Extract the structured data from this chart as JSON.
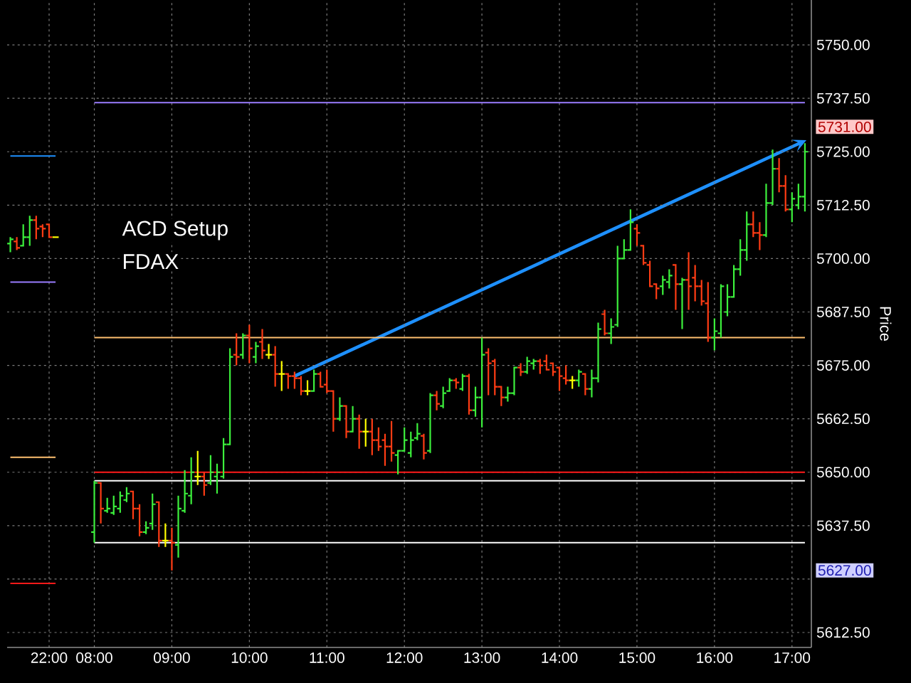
{
  "chart_data": {
    "type": "candlestick",
    "title": "ACD Setup",
    "subtitle": "FDAX",
    "ylabel": "Price",
    "categories": [
      null,
      null,
      null,
      null,
      null,
      null,
      "22:00",
      null,
      null,
      null,
      null,
      null,
      null,
      "08:00",
      null,
      null,
      null,
      null,
      null,
      null,
      null,
      null,
      null,
      null,
      null,
      "09:00",
      null,
      null,
      null,
      null,
      null,
      null,
      null,
      null,
      null,
      null,
      null,
      "10:00",
      null,
      null,
      null,
      null,
      null,
      null,
      null,
      null,
      null,
      null,
      null,
      "11:00",
      null,
      null,
      null,
      null,
      null,
      null,
      null,
      null,
      null,
      null,
      null,
      "12:00",
      null,
      null,
      null,
      null,
      null,
      null,
      null,
      null,
      null,
      null,
      null,
      "13:00",
      null,
      null,
      null,
      null,
      null,
      null,
      null,
      null,
      null,
      null,
      null,
      "14:00",
      null,
      null,
      null,
      null,
      null,
      null,
      null,
      null,
      null,
      null,
      null,
      "15:00",
      null,
      null,
      null,
      null,
      null,
      null,
      null,
      null,
      null,
      null,
      null,
      "16:00",
      null,
      null,
      null,
      null,
      null,
      null,
      null,
      null,
      null,
      null,
      null,
      "17:00",
      null,
      null
    ],
    "ohlc": [
      [
        5703.5,
        5705,
        5701.5,
        5704.5
      ],
      [
        5704,
        5705,
        5702,
        5702.5
      ],
      [
        5703,
        5708,
        5703,
        5705
      ],
      [
        5705,
        5710,
        5703,
        5709
      ],
      [
        5709,
        5710,
        5704.5,
        5707
      ],
      [
        5707.5,
        5708,
        5705,
        5707
      ],
      [
        5708,
        5708,
        5705,
        5705
      ],
      [
        5705,
        5705,
        5705,
        5705
      ],
      null,
      null,
      null,
      null,
      null,
      [
        5636,
        5648,
        5633.5,
        5647.5
      ],
      [
        5647.5,
        5647.5,
        5638,
        5641.5
      ],
      [
        5641,
        5644,
        5640.5,
        5641.5
      ],
      [
        5640.5,
        5644.5,
        5640,
        5642
      ],
      [
        5641.5,
        5645.5,
        5640.5,
        5644.5
      ],
      [
        5643.5,
        5646.5,
        5643,
        5645
      ],
      [
        5645.5,
        5645.5,
        5639,
        5641.5
      ],
      [
        5641.5,
        5642.5,
        5635,
        5636
      ],
      [
        5636,
        5638.5,
        5635.5,
        5637
      ],
      [
        5638,
        5645,
        5636.5,
        5642.5
      ],
      [
        5643,
        5643,
        5632.5,
        5634
      ],
      [
        5634,
        5638,
        5632.5,
        5634
      ],
      [
        5634,
        5637,
        5627,
        5633.5
      ],
      [
        5633,
        5644.5,
        5630,
        5641.5
      ],
      [
        5641,
        5650.5,
        5640.5,
        5645
      ],
      [
        5644.5,
        5653.5,
        5642.5,
        5650
      ],
      [
        5649,
        5655,
        5647,
        5649
      ],
      [
        5649,
        5650,
        5644.5,
        5647
      ],
      [
        5647.5,
        5654,
        5647,
        5650
      ],
      [
        5649,
        5652,
        5645,
        5650
      ],
      [
        5649,
        5658,
        5648.5,
        5656.5
      ],
      [
        5656.5,
        5679,
        5656.5,
        5677
      ],
      [
        5677.5,
        5682.5,
        5675,
        5677
      ],
      [
        5677.5,
        5682.5,
        5676.5,
        5682
      ],
      [
        5682,
        5684.5,
        5675.5,
        5679
      ],
      [
        5677,
        5680.5,
        5675.5,
        5679.5
      ],
      [
        5680.5,
        5683.5,
        5676.5,
        5678.5
      ],
      [
        5677.5,
        5680,
        5676.5,
        5677.5
      ],
      [
        5677.5,
        5679.5,
        5670,
        5673
      ],
      [
        5673,
        5676,
        5669,
        5673
      ],
      [
        5673,
        5673,
        5669.5,
        5672.5
      ],
      [
        5672.5,
        5673.5,
        5669.5,
        5672
      ],
      [
        5672,
        5672.5,
        5668,
        5669
      ],
      [
        5669,
        5671.5,
        5668,
        5669
      ],
      [
        5669,
        5674,
        5669,
        5673
      ],
      [
        5673,
        5673.5,
        5670,
        5670
      ],
      [
        5670.5,
        5674,
        5668.5,
        5669
      ],
      [
        5669,
        5669,
        5659.5,
        5662.5
      ],
      [
        5662.5,
        5667.5,
        5662,
        5665.5
      ],
      [
        5665.5,
        5665.5,
        5658,
        5659.5
      ],
      [
        5659.5,
        5665.5,
        5659.5,
        5662.5
      ],
      [
        5662.5,
        5663.5,
        5655.5,
        5659.5
      ],
      [
        5659.5,
        5662.5,
        5656,
        5659.5
      ],
      [
        5659.5,
        5662.5,
        5654,
        5657.5
      ],
      [
        5657.5,
        5660.5,
        5655,
        5656
      ],
      [
        5657.5,
        5659,
        5651.5,
        5656
      ],
      [
        5656,
        5662,
        5652.5,
        5654.5
      ],
      [
        5654,
        5655,
        5649.5,
        5655
      ],
      [
        5655,
        5660.5,
        5655,
        5657.5
      ],
      [
        5654.5,
        5659.5,
        5653.5,
        5657.5
      ],
      [
        5658,
        5661.5,
        5657.5,
        5659
      ],
      [
        5658.5,
        5659,
        5653,
        5654.5
      ],
      [
        5655,
        5668.5,
        5654.5,
        5668
      ],
      [
        5668,
        5669,
        5664.5,
        5666
      ],
      [
        5665.5,
        5670,
        5665,
        5668.5
      ],
      [
        5669,
        5672,
        5669,
        5671.5
      ],
      [
        5671.5,
        5672,
        5669.5,
        5671
      ],
      [
        5669.5,
        5673,
        5669,
        5672.5
      ],
      [
        5672.5,
        5673,
        5663.5,
        5664.5
      ],
      [
        5664.5,
        5670,
        5663,
        5667.5
      ],
      [
        5667.5,
        5681.5,
        5660.5,
        5677.5
      ],
      [
        5678,
        5679,
        5668,
        5675.5
      ],
      [
        5676,
        5676.5,
        5668,
        5670
      ],
      [
        5670,
        5670,
        5665.5,
        5667.5
      ],
      [
        5667.5,
        5670,
        5666.5,
        5668.5
      ],
      [
        5668.5,
        5674.5,
        5668,
        5674.5
      ],
      [
        5674.5,
        5675.5,
        5672.5,
        5673.5
      ],
      [
        5673.5,
        5677,
        5673,
        5676
      ],
      [
        5675.5,
        5676.5,
        5674,
        5676
      ],
      [
        5676,
        5676.5,
        5673,
        5675
      ],
      [
        5676,
        5677.5,
        5674,
        5674
      ],
      [
        5675.5,
        5675.5,
        5672.5,
        5673.5
      ],
      [
        5674.5,
        5674.5,
        5669,
        5672.5
      ],
      [
        5672,
        5675,
        5670.5,
        5671.5
      ],
      [
        5671.5,
        5672.5,
        5669.5,
        5671.5
      ],
      [
        5671.5,
        5674,
        5670,
        5673.5
      ],
      [
        5673,
        5673,
        5668,
        5669.5
      ],
      [
        5669.5,
        5674,
        5667.5,
        5672
      ],
      [
        5672,
        5685,
        5671,
        5683.5
      ],
      [
        5687,
        5688,
        5682,
        5682.5
      ],
      [
        5682.5,
        5686,
        5680,
        5684
      ],
      [
        5684.5,
        5703,
        5684,
        5700
      ],
      [
        5700,
        5704.5,
        5700,
        5702
      ],
      [
        5702,
        5711.5,
        5702,
        5708.5
      ],
      [
        5707,
        5708,
        5703,
        5706
      ],
      [
        5703,
        5703,
        5698.5,
        5699
      ],
      [
        5698.5,
        5699.5,
        5693.5,
        5693.5
      ],
      [
        5694,
        5694,
        5690.5,
        5693
      ],
      [
        5693.5,
        5696,
        5691.5,
        5695
      ],
      [
        5694.5,
        5697.5,
        5693,
        5696
      ],
      [
        5698.5,
        5698.5,
        5688,
        5694
      ],
      [
        5694,
        5695.5,
        5683.5,
        5695
      ],
      [
        5695,
        5701.5,
        5688,
        5693.5
      ],
      [
        5695.5,
        5698.5,
        5690,
        5693.5
      ],
      [
        5693.5,
        5695,
        5689,
        5690
      ],
      [
        5689.5,
        5694.5,
        5680.5,
        5681.5
      ],
      [
        5681.5,
        5686,
        5678.5,
        5683
      ],
      [
        5682.5,
        5694,
        5681.5,
        5693.5
      ],
      [
        5687.5,
        5694,
        5686.5,
        5691
      ],
      [
        5691,
        5698.5,
        5691,
        5697.5
      ],
      [
        5697.5,
        5704.5,
        5696,
        5702
      ],
      [
        5702,
        5711,
        5699.5,
        5708
      ],
      [
        5708,
        5711,
        5705,
        5706
      ],
      [
        5706,
        5708.5,
        5702,
        5705.5
      ],
      [
        5705.5,
        5717.5,
        5705,
        5713
      ],
      [
        5713,
        5725.5,
        5712.5,
        5721
      ],
      [
        5721,
        5723.5,
        5715.5,
        5717
      ],
      [
        5717,
        5719.5,
        5711,
        5711.5
      ],
      [
        5711.5,
        5715.5,
        5708.5,
        5714
      ],
      [
        5712.5,
        5717.5,
        5711.5,
        5714.5
      ],
      [
        5714.5,
        5727,
        5711,
        5725
      ]
    ],
    "colors": [
      "#3cf03c",
      "#ff3c14",
      "#3cf03c",
      "#3cf03c",
      "#ff3c14",
      "#ff3c14",
      "#ff3c14",
      "#ffff00",
      null,
      null,
      null,
      null,
      null,
      "#3cf03c",
      "#ff3c14",
      "#3cf03c",
      "#3cf03c",
      "#3cf03c",
      "#3cf03c",
      "#ff3c14",
      "#ff3c14",
      "#3cf03c",
      "#3cf03c",
      "#ff3c14",
      "#ffff00",
      "#ff3c14",
      "#3cf03c",
      "#3cf03c",
      "#3cf03c",
      "#ffff00",
      "#ff3c14",
      "#3cf03c",
      "#3cf03c",
      "#3cf03c",
      "#3cf03c",
      "#ff3c14",
      "#3cf03c",
      "#ff3c14",
      "#3cf03c",
      "#ff3c14",
      "#ffff00",
      "#ff3c14",
      "#ffff00",
      "#ff3c14",
      "#ff3c14",
      "#ff3c14",
      "#ffff00",
      "#3cf03c",
      "#ff3c14",
      "#ff3c14",
      "#ff3c14",
      "#3cf03c",
      "#ff3c14",
      "#3cf03c",
      "#ff3c14",
      "#ffff00",
      "#ff3c14",
      "#ff3c14",
      "#ff3c14",
      "#ff3c14",
      "#3cf03c",
      "#3cf03c",
      "#3cf03c",
      "#3cf03c",
      "#ff3c14",
      "#3cf03c",
      "#ff3c14",
      "#3cf03c",
      "#3cf03c",
      "#ff3c14",
      "#3cf03c",
      "#ff3c14",
      "#3cf03c",
      "#3cf03c",
      "#ff3c14",
      "#ff3c14",
      "#ff3c14",
      "#3cf03c",
      "#3cf03c",
      "#ff3c14",
      "#3cf03c",
      "#3cf03c",
      "#ff3c14",
      "#ff3c14",
      "#ff3c14",
      "#ff3c14",
      "#ff3c14",
      "#ffff00",
      "#3cf03c",
      "#ff3c14",
      "#3cf03c",
      "#3cf03c",
      "#ff3c14",
      "#3cf03c",
      "#3cf03c",
      "#3cf03c",
      "#3cf03c",
      "#ff3c14",
      "#ff3c14",
      "#ff3c14",
      "#ff3c14",
      "#3cf03c",
      "#3cf03c",
      "#ff3c14",
      "#3cf03c",
      "#ff3c14",
      "#ff3c14",
      "#ff3c14",
      "#ff3c14",
      "#3cf03c",
      "#3cf03c",
      "#3cf03c",
      "#3cf03c",
      "#3cf03c",
      "#3cf03c",
      "#ff3c14",
      "#ff3c14",
      "#3cf03c",
      "#3cf03c",
      "#ff3c14",
      "#ff3c14",
      "#3cf03c",
      "#3cf03c",
      "#3cf03c"
    ],
    "series": [
      {
        "type": "line",
        "color": "#1e90ff",
        "values": [
          5724,
          5724,
          5724,
          5724,
          5724,
          5724,
          5724,
          5724,
          null,
          null,
          null,
          null,
          null,
          null,
          null,
          null,
          null,
          null,
          null,
          null,
          null,
          null,
          null,
          null,
          null,
          null,
          null,
          null,
          null,
          null,
          null,
          null,
          null,
          null,
          null,
          null,
          null,
          null,
          null,
          null,
          null,
          null,
          null,
          null,
          null,
          null,
          null,
          null,
          null,
          null,
          null,
          null,
          null,
          null,
          null,
          null,
          null,
          null,
          null,
          null,
          null,
          null,
          null,
          null,
          null,
          null,
          null,
          null,
          null,
          null,
          null,
          null,
          null,
          null,
          null,
          null,
          null,
          null,
          null,
          null,
          null,
          null,
          null,
          null,
          null,
          null,
          null,
          null,
          null,
          null,
          null,
          null,
          null,
          null,
          null,
          null,
          null,
          null,
          null,
          null,
          null,
          null,
          null,
          null,
          null,
          null,
          null,
          null,
          null,
          null,
          null,
          null,
          null,
          null,
          null,
          null,
          null,
          null,
          null,
          null,
          null,
          null,
          null,
          null
        ]
      },
      {
        "type": "line",
        "color": "#9a7cff",
        "values": [
          5694.5,
          5694.5,
          5694.5,
          5694.5,
          5694.5,
          5694.5,
          5694.5,
          5694.5,
          null,
          null,
          null,
          null,
          null,
          null,
          null,
          null,
          null,
          null,
          null,
          null,
          null,
          null,
          null,
          null,
          null,
          null,
          null,
          null,
          null,
          null,
          null,
          null,
          null,
          null,
          null,
          null,
          null,
          null,
          null,
          null,
          null,
          null,
          null,
          null,
          null,
          null,
          null,
          null,
          null,
          null,
          null,
          null,
          null,
          null,
          null,
          null,
          null,
          null,
          null,
          null,
          null,
          null,
          null,
          null,
          null,
          null,
          null,
          null,
          null,
          null,
          null,
          null,
          null,
          null,
          null,
          null,
          null,
          null,
          null,
          null,
          null,
          null,
          null,
          null,
          null,
          null,
          null,
          null,
          null,
          null,
          null,
          null,
          null,
          null,
          null,
          null,
          null,
          null,
          null,
          null,
          null,
          null,
          null,
          null,
          null,
          null,
          null,
          null,
          null,
          null,
          null,
          null,
          null,
          null,
          null,
          null,
          null,
          null,
          null,
          null,
          null,
          null,
          null,
          null
        ]
      },
      {
        "type": "line",
        "color": "#ffc070",
        "values": [
          5653.5,
          5653.5,
          5653.5,
          5653.5,
          5653.5,
          5653.5,
          5653.5,
          5653.5,
          null,
          null,
          null,
          null,
          null,
          null,
          null,
          null,
          null,
          null,
          null,
          null,
          null,
          null,
          null,
          null,
          null,
          null,
          null,
          null,
          null,
          null,
          null,
          null,
          null,
          null,
          null,
          null,
          null,
          null,
          null,
          null,
          null,
          null,
          null,
          null,
          null,
          null,
          null,
          null,
          null,
          null,
          null,
          null,
          null,
          null,
          null,
          null,
          null,
          null,
          null,
          null,
          null,
          null,
          null,
          null,
          null,
          null,
          null,
          null,
          null,
          null,
          null,
          null,
          null,
          null,
          null,
          null,
          null,
          null,
          null,
          null,
          null,
          null,
          null,
          null,
          null,
          null,
          null,
          null,
          null,
          null,
          null,
          null,
          null,
          null,
          null,
          null,
          null,
          null,
          null,
          null,
          null,
          null,
          null,
          null,
          null,
          null,
          null,
          null,
          null,
          null,
          null,
          null,
          null,
          null,
          null,
          null,
          null,
          null,
          null,
          null,
          null,
          null,
          null,
          null
        ]
      },
      {
        "type": "line",
        "color": "#ff1a1a",
        "values": [
          5624,
          5624,
          5624,
          5624,
          5624,
          5624,
          5624,
          5624,
          null,
          null,
          null,
          null,
          null,
          null,
          null,
          null,
          null,
          null,
          null,
          null,
          null,
          null,
          null,
          null,
          null,
          null,
          null,
          null,
          null,
          null,
          null,
          null,
          null,
          null,
          null,
          null,
          null,
          null,
          null,
          null,
          null,
          null,
          null,
          null,
          null,
          null,
          null,
          null,
          null,
          null,
          null,
          null,
          null,
          null,
          null,
          null,
          null,
          null,
          null,
          null,
          null,
          null,
          null,
          null,
          null,
          null,
          null,
          null,
          null,
          null,
          null,
          null,
          null,
          null,
          null,
          null,
          null,
          null,
          null,
          null,
          null,
          null,
          null,
          null,
          null,
          null,
          null,
          null,
          null,
          null,
          null,
          null,
          null,
          null,
          null,
          null,
          null,
          null,
          null,
          null,
          null,
          null,
          null,
          null,
          null,
          null,
          null,
          null,
          null,
          null,
          null,
          null,
          null,
          null,
          null,
          null,
          null,
          null,
          null,
          null,
          null,
          null,
          null,
          null
        ]
      },
      {
        "type": "line",
        "color": "#9a7cff",
        "values": [
          null,
          null,
          null,
          null,
          null,
          null,
          null,
          null,
          null,
          null,
          null,
          null,
          null,
          5736.5,
          5736.5,
          5736.5,
          5736.5,
          5736.5,
          5736.5,
          5736.5,
          5736.5,
          5736.5,
          5736.5,
          5736.5,
          5736.5,
          5736.5,
          5736.5,
          5736.5,
          5736.5,
          5736.5,
          5736.5,
          5736.5,
          5736.5,
          5736.5,
          5736.5,
          5736.5,
          5736.5,
          5736.5,
          5736.5,
          5736.5,
          5736.5,
          5736.5,
          5736.5,
          5736.5,
          5736.5,
          5736.5,
          5736.5,
          5736.5,
          5736.5,
          5736.5,
          5736.5,
          5736.5,
          5736.5,
          5736.5,
          5736.5,
          5736.5,
          5736.5,
          5736.5,
          5736.5,
          5736.5,
          5736.5,
          5736.5,
          5736.5,
          5736.5,
          5736.5,
          5736.5,
          5736.5,
          5736.5,
          5736.5,
          5736.5,
          5736.5,
          5736.5,
          5736.5,
          5736.5,
          5736.5,
          5736.5,
          5736.5,
          5736.5,
          5736.5,
          5736.5,
          5736.5,
          5736.5,
          5736.5,
          5736.5,
          5736.5,
          5736.5,
          5736.5,
          5736.5,
          5736.5,
          5736.5,
          5736.5,
          5736.5,
          5736.5,
          5736.5,
          5736.5,
          5736.5,
          5736.5,
          5736.5,
          5736.5,
          5736.5,
          5736.5,
          5736.5,
          5736.5,
          5736.5,
          5736.5,
          5736.5,
          5736.5,
          5736.5,
          5736.5,
          5736.5,
          5736.5,
          5736.5,
          5736.5,
          5736.5,
          5736.5,
          5736.5,
          5736.5,
          5736.5,
          5736.5,
          5736.5,
          5736.5,
          5736.5,
          5736.5,
          5736.5
        ]
      },
      {
        "type": "line",
        "color": "#ffc070",
        "values": [
          null,
          null,
          null,
          null,
          null,
          null,
          null,
          null,
          null,
          null,
          null,
          null,
          null,
          5681.5,
          5681.5,
          5681.5,
          5681.5,
          5681.5,
          5681.5,
          5681.5,
          5681.5,
          5681.5,
          5681.5,
          5681.5,
          5681.5,
          5681.5,
          5681.5,
          5681.5,
          5681.5,
          5681.5,
          5681.5,
          5681.5,
          5681.5,
          5681.5,
          5681.5,
          5681.5,
          5681.5,
          5681.5,
          5681.5,
          5681.5,
          5681.5,
          5681.5,
          5681.5,
          5681.5,
          5681.5,
          5681.5,
          5681.5,
          5681.5,
          5681.5,
          5681.5,
          5681.5,
          5681.5,
          5681.5,
          5681.5,
          5681.5,
          5681.5,
          5681.5,
          5681.5,
          5681.5,
          5681.5,
          5681.5,
          5681.5,
          5681.5,
          5681.5,
          5681.5,
          5681.5,
          5681.5,
          5681.5,
          5681.5,
          5681.5,
          5681.5,
          5681.5,
          5681.5,
          5681.5,
          5681.5,
          5681.5,
          5681.5,
          5681.5,
          5681.5,
          5681.5,
          5681.5,
          5681.5,
          5681.5,
          5681.5,
          5681.5,
          5681.5,
          5681.5,
          5681.5,
          5681.5,
          5681.5,
          5681.5,
          5681.5,
          5681.5,
          5681.5,
          5681.5,
          5681.5,
          5681.5,
          5681.5,
          5681.5,
          5681.5,
          5681.5,
          5681.5,
          5681.5,
          5681.5,
          5681.5,
          5681.5,
          5681.5,
          5681.5,
          5681.5,
          5681.5,
          5681.5,
          5681.5,
          5681.5,
          5681.5,
          5681.5,
          5681.5,
          5681.5,
          5681.5,
          5681.5,
          5681.5,
          5681.5,
          5681.5,
          5681.5,
          5681.5
        ]
      },
      {
        "type": "line",
        "color": "#ff1a1a",
        "values": [
          null,
          null,
          null,
          null,
          null,
          null,
          null,
          null,
          null,
          null,
          null,
          null,
          null,
          5650,
          5650,
          5650,
          5650,
          5650,
          5650,
          5650,
          5650,
          5650,
          5650,
          5650,
          5650,
          5650,
          5650,
          5650,
          5650,
          5650,
          5650,
          5650,
          5650,
          5650,
          5650,
          5650,
          5650,
          5650,
          5650,
          5650,
          5650,
          5650,
          5650,
          5650,
          5650,
          5650,
          5650,
          5650,
          5650,
          5650,
          5650,
          5650,
          5650,
          5650,
          5650,
          5650,
          5650,
          5650,
          5650,
          5650,
          5650,
          5650,
          5650,
          5650,
          5650,
          5650,
          5650,
          5650,
          5650,
          5650,
          5650,
          5650,
          5650,
          5650,
          5650,
          5650,
          5650,
          5650,
          5650,
          5650,
          5650,
          5650,
          5650,
          5650,
          5650,
          5650,
          5650,
          5650,
          5650,
          5650,
          5650,
          5650,
          5650,
          5650,
          5650,
          5650,
          5650,
          5650,
          5650,
          5650,
          5650,
          5650,
          5650,
          5650,
          5650,
          5650,
          5650,
          5650,
          5650,
          5650,
          5650,
          5650,
          5650,
          5650,
          5650,
          5650,
          5650,
          5650,
          5650,
          5650,
          5650,
          5650,
          5650,
          5650
        ]
      },
      {
        "type": "line",
        "color": "#ffffff",
        "values": [
          null,
          null,
          null,
          null,
          null,
          null,
          null,
          null,
          null,
          null,
          null,
          null,
          null,
          5648,
          5648,
          5648,
          5648,
          5648,
          5648,
          5648,
          5648,
          5648,
          5648,
          5648,
          5648,
          5648,
          5648,
          5648,
          5648,
          5648,
          5648,
          5648,
          5648,
          5648,
          5648,
          5648,
          5648,
          5648,
          5648,
          5648,
          5648,
          5648,
          5648,
          5648,
          5648,
          5648,
          5648,
          5648,
          5648,
          5648,
          5648,
          5648,
          5648,
          5648,
          5648,
          5648,
          5648,
          5648,
          5648,
          5648,
          5648,
          5648,
          5648,
          5648,
          5648,
          5648,
          5648,
          5648,
          5648,
          5648,
          5648,
          5648,
          5648,
          5648,
          5648,
          5648,
          5648,
          5648,
          5648,
          5648,
          5648,
          5648,
          5648,
          5648,
          5648,
          5648,
          5648,
          5648,
          5648,
          5648,
          5648,
          5648,
          5648,
          5648,
          5648,
          5648,
          5648,
          5648,
          5648,
          5648,
          5648,
          5648,
          5648,
          5648,
          5648,
          5648,
          5648,
          5648,
          5648,
          5648,
          5648,
          5648,
          5648,
          5648,
          5648,
          5648,
          5648,
          5648,
          5648,
          5648,
          5648,
          5648,
          5648,
          5648
        ]
      },
      {
        "type": "line",
        "color": "#ffffff",
        "values": [
          null,
          null,
          null,
          null,
          null,
          null,
          null,
          null,
          null,
          null,
          null,
          null,
          null,
          5633.5,
          5633.5,
          5633.5,
          5633.5,
          5633.5,
          5633.5,
          5633.5,
          5633.5,
          5633.5,
          5633.5,
          5633.5,
          5633.5,
          5633.5,
          5633.5,
          5633.5,
          5633.5,
          5633.5,
          5633.5,
          5633.5,
          5633.5,
          5633.5,
          5633.5,
          5633.5,
          5633.5,
          5633.5,
          5633.5,
          5633.5,
          5633.5,
          5633.5,
          5633.5,
          5633.5,
          5633.5,
          5633.5,
          5633.5,
          5633.5,
          5633.5,
          5633.5,
          5633.5,
          5633.5,
          5633.5,
          5633.5,
          5633.5,
          5633.5,
          5633.5,
          5633.5,
          5633.5,
          5633.5,
          5633.5,
          5633.5,
          5633.5,
          5633.5,
          5633.5,
          5633.5,
          5633.5,
          5633.5,
          5633.5,
          5633.5,
          5633.5,
          5633.5,
          5633.5,
          5633.5,
          5633.5,
          5633.5,
          5633.5,
          5633.5,
          5633.5,
          5633.5,
          5633.5,
          5633.5,
          5633.5,
          5633.5,
          5633.5,
          5633.5,
          5633.5,
          5633.5,
          5633.5,
          5633.5,
          5633.5,
          5633.5,
          5633.5,
          5633.5,
          5633.5,
          5633.5,
          5633.5,
          5633.5,
          5633.5,
          5633.5,
          5633.5,
          5633.5,
          5633.5,
          5633.5,
          5633.5,
          5633.5,
          5633.5,
          5633.5,
          5633.5,
          5633.5,
          5633.5,
          5633.5,
          5633.5,
          5633.5,
          5633.5,
          5633.5,
          5633.5,
          5633.5,
          5633.5,
          5633.5,
          5633.5,
          5633.5,
          5633.5,
          5633.5
        ]
      }
    ],
    "ylim": [
      5609,
      5760.5
    ],
    "yticks": [
      {
        "value": 5612.5,
        "label": "5612.50"
      },
      {
        "value": 5625,
        "label": null
      },
      {
        "value": 5637.5,
        "label": "5637.50"
      },
      {
        "value": 5650,
        "label": "5650.00"
      },
      {
        "value": 5662.5,
        "label": "5662.50"
      },
      {
        "value": 5675,
        "label": "5675.00"
      },
      {
        "value": 5687.5,
        "label": "5687.50"
      },
      {
        "value": 5700,
        "label": "5700.00"
      },
      {
        "value": 5712.5,
        "label": "5712.50"
      },
      {
        "value": 5725,
        "label": "5725.00"
      },
      {
        "value": 5737.5,
        "label": "5737.50"
      },
      {
        "value": 5750,
        "label": "5750.00"
      }
    ],
    "grid": true,
    "annotations": [
      "5731.00",
      "5627.00"
    ]
  }
}
